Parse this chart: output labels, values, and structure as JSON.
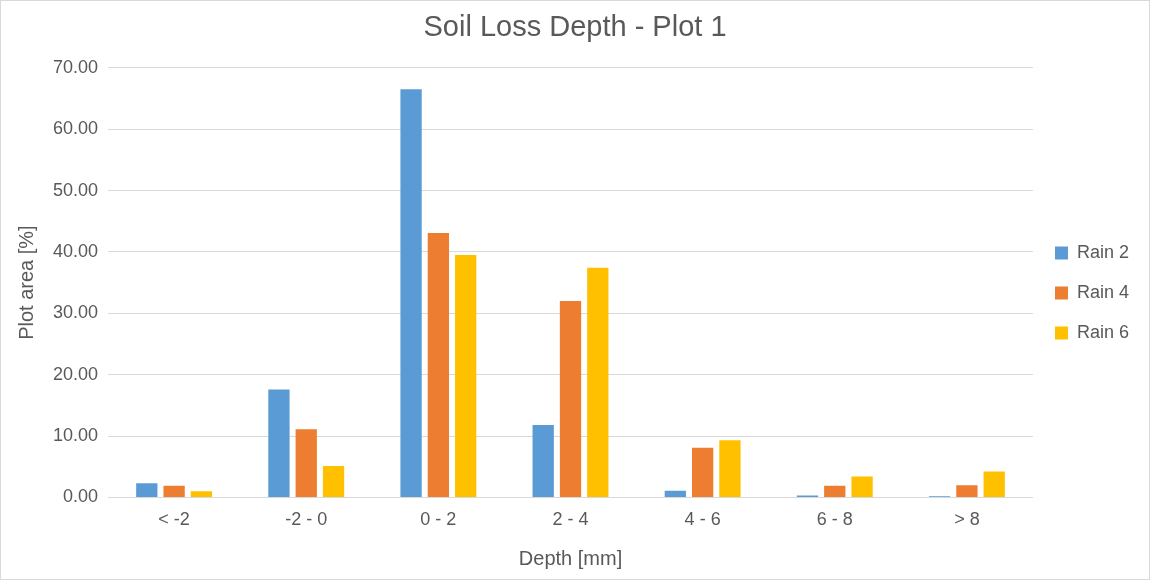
{
  "chart_data": {
    "type": "bar",
    "title": "Soil Loss Depth - Plot 1",
    "xlabel": "Depth [mm]",
    "ylabel": "Plot area [%]",
    "categories": [
      "< -2",
      "-2 - 0",
      "0 - 2",
      "2 - 4",
      "4 - 6",
      "6 - 8",
      "> 8"
    ],
    "series": [
      {
        "name": "Rain 2",
        "color": "#5b9bd5",
        "values": [
          2.3,
          17.6,
          66.5,
          11.8,
          1.1,
          0.3,
          0.2
        ]
      },
      {
        "name": "Rain 4",
        "color": "#ed7d31",
        "values": [
          1.9,
          11.1,
          43.1,
          32.0,
          8.1,
          1.9,
          2.0
        ]
      },
      {
        "name": "Rain 6",
        "color": "#ffc000",
        "values": [
          1.0,
          5.1,
          39.5,
          37.4,
          9.3,
          3.4,
          4.2
        ]
      }
    ],
    "ylim": [
      0,
      70
    ],
    "yticks": [
      {
        "value": 0,
        "label": "0.00"
      },
      {
        "value": 10,
        "label": "10.00"
      },
      {
        "value": 20,
        "label": "20.00"
      },
      {
        "value": 30,
        "label": "30.00"
      },
      {
        "value": 40,
        "label": "40.00"
      },
      {
        "value": 50,
        "label": "50.00"
      },
      {
        "value": 60,
        "label": "60.00"
      },
      {
        "value": 70,
        "label": "70.00"
      }
    ],
    "grid": "y",
    "legend": "right"
  }
}
